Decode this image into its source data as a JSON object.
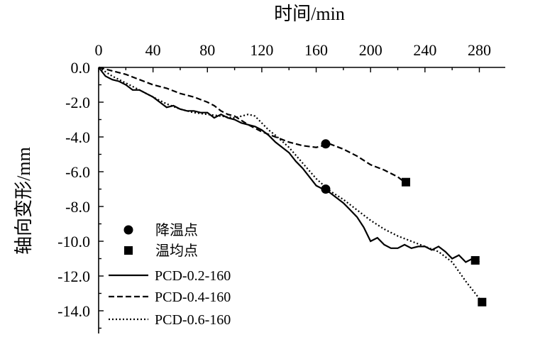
{
  "chart_data": {
    "type": "line",
    "xlabel": "时间/min",
    "ylabel": "轴向变形/mm",
    "xlim": [
      0,
      300
    ],
    "ylim": [
      -15,
      0
    ],
    "x_ticks": [
      "0",
      "40",
      "80",
      "120",
      "160",
      "200",
      "240",
      "280"
    ],
    "y_ticks": [
      "0.0",
      "-2.0",
      "-4.0",
      "-6.0",
      "-8.0",
      "-10.0",
      "-12.0",
      "-14.0"
    ],
    "x_axis_position": "top",
    "grid": false,
    "legend_position": "bottom-left",
    "series": [
      {
        "name": "PCD-0.2-160",
        "style": "solid",
        "x": [
          0,
          5,
          10,
          15,
          20,
          25,
          30,
          35,
          40,
          45,
          50,
          55,
          60,
          65,
          70,
          75,
          80,
          85,
          90,
          95,
          100,
          105,
          110,
          115,
          120,
          125,
          130,
          135,
          140,
          145,
          150,
          155,
          160,
          165,
          170,
          175,
          180,
          185,
          190,
          195,
          200,
          205,
          210,
          215,
          220,
          225,
          230,
          235,
          240,
          245,
          250,
          255,
          260,
          265,
          270,
          275,
          280
        ],
        "values": [
          0,
          -0.5,
          -0.7,
          -0.8,
          -1.0,
          -1.3,
          -1.3,
          -1.5,
          -1.7,
          -2.0,
          -2.3,
          -2.2,
          -2.4,
          -2.5,
          -2.5,
          -2.6,
          -2.6,
          -2.9,
          -2.7,
          -2.9,
          -3.0,
          -3.2,
          -3.3,
          -3.4,
          -3.6,
          -3.9,
          -4.3,
          -4.6,
          -4.9,
          -5.4,
          -5.8,
          -6.3,
          -6.8,
          -7.0,
          -7.2,
          -7.5,
          -7.8,
          -8.2,
          -8.6,
          -9.2,
          -10.0,
          -9.8,
          -10.2,
          -10.4,
          -10.4,
          -10.2,
          -10.4,
          -10.3,
          -10.3,
          -10.5,
          -10.3,
          -10.6,
          -11.0,
          -10.8,
          -11.2,
          -11.0,
          -11.2
        ]
      },
      {
        "name": "PCD-0.4-160",
        "style": "dashed",
        "x": [
          0,
          10,
          20,
          30,
          40,
          50,
          60,
          70,
          80,
          85,
          90,
          95,
          100,
          110,
          120,
          130,
          140,
          150,
          160,
          165,
          170,
          180,
          190,
          200,
          210,
          220,
          225
        ],
        "values": [
          0,
          -0.2,
          -0.4,
          -0.7,
          -1.0,
          -1.2,
          -1.5,
          -1.7,
          -2.0,
          -2.2,
          -2.5,
          -2.7,
          -2.8,
          -3.3,
          -3.7,
          -4.0,
          -4.3,
          -4.5,
          -4.6,
          -4.5,
          -4.4,
          -4.7,
          -5.1,
          -5.6,
          -5.9,
          -6.3,
          -6.6
        ]
      },
      {
        "name": "PCD-0.6-160",
        "style": "dotted",
        "x": [
          0,
          10,
          20,
          30,
          40,
          50,
          60,
          70,
          80,
          90,
          100,
          110,
          115,
          120,
          125,
          130,
          140,
          150,
          160,
          170,
          180,
          190,
          200,
          210,
          220,
          230,
          240,
          250,
          260,
          270,
          282
        ],
        "values": [
          0,
          -0.5,
          -0.9,
          -1.3,
          -1.7,
          -2.1,
          -2.4,
          -2.6,
          -2.7,
          -2.8,
          -2.9,
          -2.7,
          -2.8,
          -3.2,
          -3.6,
          -3.9,
          -4.6,
          -5.5,
          -6.4,
          -7.1,
          -7.6,
          -8.2,
          -8.8,
          -9.3,
          -9.7,
          -10.0,
          -10.3,
          -10.6,
          -11.2,
          -12.3,
          -13.5
        ]
      }
    ],
    "markers": [
      {
        "name": "降温点",
        "shape": "circle",
        "points": [
          [
            167,
            -4.4
          ],
          [
            167,
            -7.0
          ]
        ]
      },
      {
        "name": "温均点",
        "shape": "square",
        "points": [
          [
            226,
            -6.6
          ],
          [
            277,
            -11.1
          ],
          [
            282,
            -13.5
          ]
        ]
      }
    ]
  }
}
